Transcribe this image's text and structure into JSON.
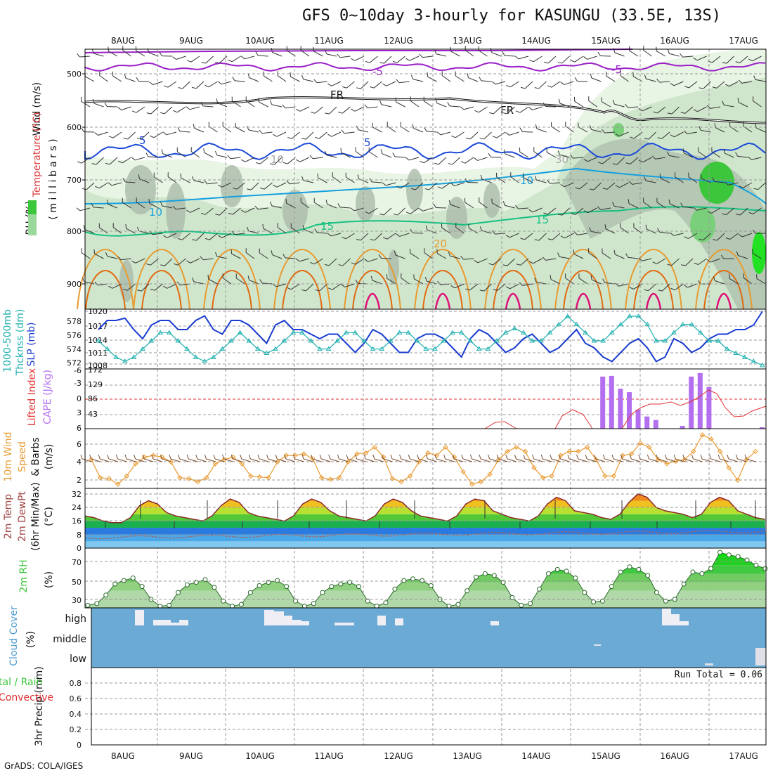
{
  "title": "GFS 0~10day 3-hourly for KASUNGU (33.5E, 13S)",
  "credit": "GrADS: COLA/IGES",
  "dates": [
    "8AUG",
    "9AUG",
    "10AUG",
    "11AUG",
    "12AUG",
    "13AUG",
    "14AUG",
    "15AUG",
    "16AUG",
    "17AUG"
  ],
  "colors": {
    "purple": "#9a1fc8",
    "black": "#111111",
    "blue": "#1a48d8",
    "cyan": "#14a0e0",
    "green": "#14c080",
    "orange": "#e89a30",
    "darkorange": "#e06a10",
    "pink": "#e0107a",
    "rh_green": "#3cc63c",
    "cape": "#b46ef0",
    "li": "#e03030",
    "slp": "#1a3cd0",
    "thk": "#20b0b0",
    "wind": "#e89a30"
  },
  "panels": {
    "upper": {
      "ylabel_wind": "Wind (m/s)",
      "ylabel_temp": "Temperature (°C)",
      "ylabel_rh": "RH (%)",
      "ylabel_p": "( m i l l i b a r s )",
      "yticks": [
        "500",
        "600",
        "700",
        "800",
        "900"
      ],
      "contour_labels": {
        "m5a": "-5",
        "m5b": "-5",
        "fr1": "FR",
        "fr2": "FR",
        "p5a": "5",
        "p5b": "5",
        "p10a": "10",
        "p10b": "10",
        "p15a": "15",
        "p15b": "15",
        "p20": "20",
        "rh30": "30",
        "rh10": "10"
      }
    },
    "slp": {
      "ylabel1": "1000-500mb",
      "ylabel2": "Thcknss (dm)",
      "ylabel3": "SLP (mb)",
      "left_ticks": [
        "578",
        "576",
        "574",
        "572"
      ],
      "right_ticks": [
        "1020",
        "1017",
        "1014",
        "1011",
        "1008"
      ]
    },
    "cape": {
      "ylabel1": "Lifted Index",
      "ylabel2": "CAPE (J/kg)",
      "left_ticks": [
        "-6",
        "-3",
        "0",
        "3",
        "6"
      ],
      "right_ticks": [
        "172",
        "129",
        "86",
        "43"
      ]
    },
    "wind10": {
      "ylabel1": "10m Wind",
      "ylabel2": "Speed",
      "ylabel3": "& Barbs",
      "ylabel4": "(m/s)",
      "ticks": [
        "6",
        "4",
        "2"
      ]
    },
    "temp2m": {
      "ylabel1": "2m Temp",
      "ylabel2": "2m DewPt",
      "ylabel3": "(6hr Min/Max)",
      "ylabel4": "(°C)",
      "ticks": [
        "32",
        "24",
        "16",
        "8",
        "0"
      ]
    },
    "rh2m": {
      "ylabel1": "2m RH",
      "ylabel2": "(%)",
      "ticks": [
        "70",
        "50",
        "30"
      ]
    },
    "cloud": {
      "ylabel1": "Cloud Cover",
      "ylabel2": "(%)",
      "levels": [
        "high",
        "middle",
        "low"
      ]
    },
    "precip": {
      "ylabel1": "3hr Precip (mm)",
      "ylabel2": "tal / Rain",
      "ylabel3": "Convective",
      "run_total": "Run Total = 0.06",
      "ticks": [
        "0.8",
        "0.6",
        "0.4",
        "0.2",
        "0"
      ]
    }
  },
  "chart_data": [
    {
      "type": "line",
      "title": "1000-500mb Thickness (dm) / SLP (mb)",
      "series": [
        {
          "name": "SLP (mb)",
          "values": [
            1016,
            1018,
            1018,
            1018.5,
            1016,
            1014,
            1017,
            1018,
            1018,
            1016,
            1016,
            1018,
            1019,
            1016,
            1015,
            1018,
            1018,
            1017,
            1015,
            1013,
            1017,
            1018,
            1016,
            1016,
            1015,
            1014,
            1015,
            1015,
            1013,
            1011,
            1013,
            1016,
            1015,
            1013,
            1011,
            1011,
            1014,
            1015,
            1015,
            1014,
            1012,
            1010,
            1014,
            1016,
            1015,
            1013,
            1011,
            1012,
            1014,
            1015,
            1013,
            1011,
            1012,
            1014,
            1016,
            1013,
            1012,
            1010,
            1009,
            1011,
            1013,
            1014,
            1012,
            1009,
            1010,
            1014,
            1013,
            1011,
            1012,
            1014,
            1015,
            1015,
            1016,
            1016,
            1017,
            1020
          ]
        },
        {
          "name": "1000-500mb Thickness (dm)",
          "values": [
            575,
            574,
            573,
            572.5,
            573,
            574,
            575,
            576,
            576,
            575,
            574,
            573,
            572.5,
            573,
            574,
            575,
            576,
            575,
            574,
            573.5,
            574,
            575,
            576,
            576,
            575,
            574,
            574,
            575,
            576,
            576,
            575,
            574,
            574,
            575,
            576,
            576,
            575,
            574,
            574,
            575,
            576,
            576,
            575,
            574,
            574,
            575,
            576,
            576.5,
            576,
            575,
            575,
            576,
            577,
            578,
            577,
            576,
            575,
            575,
            576,
            577,
            578,
            578,
            577,
            575,
            575,
            576,
            577,
            577,
            576,
            575,
            575,
            574,
            573.5,
            573,
            572.5,
            572
          ]
        }
      ]
    },
    {
      "type": "bar",
      "title": "CAPE (J/kg)",
      "x_labels": "3-hourly steps",
      "values": [
        0,
        0,
        0,
        0,
        0,
        0,
        0,
        0,
        0,
        0,
        0,
        0,
        0,
        0,
        0,
        0,
        0,
        0,
        0,
        0,
        0,
        0,
        0,
        0,
        0,
        0,
        0,
        0,
        0,
        0,
        0,
        0,
        0,
        0,
        0,
        0,
        0,
        0,
        0,
        0,
        0,
        0,
        0,
        0,
        0,
        0,
        0,
        0,
        0,
        0,
        0,
        0,
        0,
        0,
        0,
        0,
        0,
        150,
        152,
        115,
        105,
        55,
        35,
        25,
        0,
        0,
        8,
        150,
        160,
        120,
        0,
        0,
        0,
        0,
        0,
        4
      ],
      "ylim": [
        0,
        172
      ]
    },
    {
      "type": "line",
      "title": "10m Wind Speed (m/s)",
      "values": [
        4.5,
        2.3,
        2.2,
        1.5,
        2.5,
        4,
        4.8,
        5,
        4.8,
        4.2,
        2.3,
        2.2,
        1.8,
        2.3,
        4,
        4.5,
        4.8,
        4,
        2.5,
        2.4,
        2.3,
        4.2,
        5,
        5,
        5.2,
        4.6,
        2.3,
        2.1,
        2.3,
        4.2,
        5.2,
        5.3,
        6,
        4.8,
        2.2,
        1.8,
        2.5,
        4.2,
        5.3,
        5,
        6,
        4.8,
        3,
        1.5,
        1.8,
        2.7,
        4.5,
        5.5,
        6,
        5.5,
        3.5,
        2.3,
        2.5,
        5,
        5.5,
        5.5,
        6,
        4.5,
        2.5,
        2.5,
        5,
        5.2,
        6.5,
        6,
        4.5,
        4,
        4.3,
        4.5,
        5.5,
        7.5,
        7,
        5.5,
        3.5,
        2,
        4.5,
        5.5
      ],
      "ylim": [
        1,
        8
      ]
    },
    {
      "type": "area",
      "title": "2m Temp (°C)",
      "values": [
        19,
        18,
        16,
        15,
        15,
        18,
        25,
        28,
        26,
        21,
        19,
        18,
        17,
        16,
        19,
        25,
        29,
        27,
        21,
        19,
        18,
        17,
        16,
        19,
        26,
        29,
        27,
        22,
        19,
        18,
        17,
        16,
        19,
        26,
        29,
        27,
        22,
        19,
        18,
        17,
        16,
        19,
        26,
        29,
        28,
        22,
        20,
        18,
        17,
        16,
        19,
        26,
        30,
        28,
        22,
        21,
        20,
        18,
        17,
        20,
        27,
        32,
        30,
        24,
        22,
        21,
        20,
        18,
        20,
        27,
        30,
        28,
        22,
        20,
        18,
        17
      ],
      "ylim": [
        0,
        34
      ]
    },
    {
      "type": "area",
      "title": "2m RH (%)",
      "values": [
        23,
        25,
        35,
        48,
        52,
        55,
        45,
        30,
        22,
        23,
        38,
        47,
        50,
        53,
        44,
        28,
        22,
        24,
        38,
        46,
        50,
        52,
        45,
        28,
        22,
        25,
        38,
        45,
        48,
        50,
        45,
        28,
        22,
        26,
        42,
        52,
        54,
        52,
        46,
        30,
        22,
        24,
        40,
        56,
        60,
        58,
        50,
        32,
        23,
        25,
        42,
        60,
        65,
        63,
        55,
        38,
        27,
        28,
        45,
        62,
        68,
        65,
        58,
        38,
        28,
        30,
        48,
        62,
        60,
        66,
        85,
        82,
        80,
        76,
        70,
        66
      ],
      "ylim": [
        20,
        90
      ]
    },
    {
      "type": "table",
      "title": "Cloud Cover (%)",
      "rows": [
        "high",
        "middle",
        "low"
      ]
    },
    {
      "type": "bar",
      "title": "3hr Precip (mm)",
      "values": [
        0
      ],
      "ylim": [
        0,
        0.9
      ]
    }
  ]
}
